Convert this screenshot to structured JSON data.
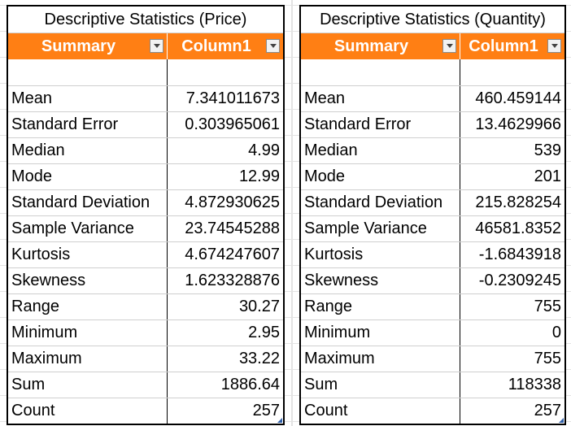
{
  "price_table": {
    "title": "Descriptive Statistics (Price)",
    "headers": [
      "Summary",
      "Column1"
    ],
    "rows": [
      [
        "Mean",
        "7.341011673"
      ],
      [
        "Standard Error",
        "0.303965061"
      ],
      [
        "Median",
        "4.99"
      ],
      [
        "Mode",
        "12.99"
      ],
      [
        "Standard Deviation",
        "4.872930625"
      ],
      [
        "Sample Variance",
        "23.74545288"
      ],
      [
        "Kurtosis",
        "4.674247607"
      ],
      [
        "Skewness",
        "1.623328876"
      ],
      [
        "Range",
        "30.27"
      ],
      [
        "Minimum",
        "2.95"
      ],
      [
        "Maximum",
        "33.22"
      ],
      [
        "Sum",
        "1886.64"
      ],
      [
        "Count",
        "257"
      ]
    ]
  },
  "qty_table": {
    "title": "Descriptive Statistics (Quantity)",
    "headers": [
      "Summary",
      "Column1"
    ],
    "rows": [
      [
        "Mean",
        "460.459144"
      ],
      [
        "Standard Error",
        "13.4629966"
      ],
      [
        "Median",
        "539"
      ],
      [
        "Mode",
        "201"
      ],
      [
        "Standard Deviation",
        "215.828254"
      ],
      [
        "Sample Variance",
        "46581.8352"
      ],
      [
        "Kurtosis",
        "-1.6843918"
      ],
      [
        "Skewness",
        "-0.2309245"
      ],
      [
        "Range",
        "755"
      ],
      [
        "Minimum",
        "0"
      ],
      [
        "Maximum",
        "755"
      ],
      [
        "Sum",
        "118338"
      ],
      [
        "Count",
        "257"
      ]
    ]
  },
  "colors": {
    "header_bg": "#ff7f14",
    "header_text": "#ffffff",
    "border": "#000000",
    "gridline": "#e3e3e3"
  },
  "icons": {
    "filter_dropdown": "chevron-down-icon"
  }
}
